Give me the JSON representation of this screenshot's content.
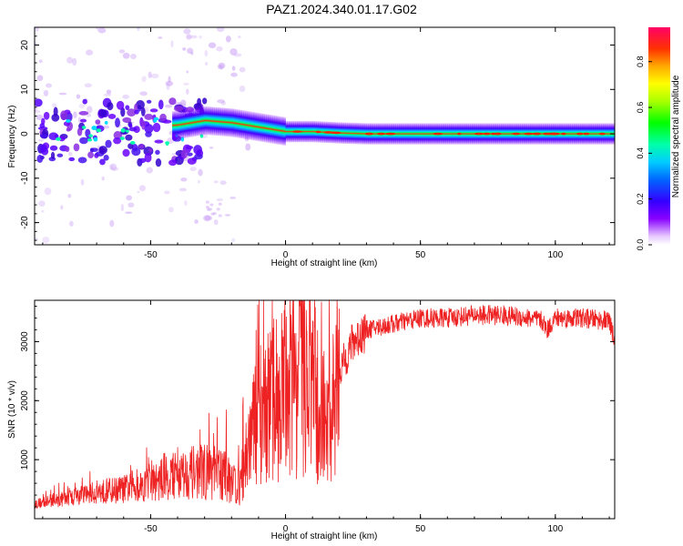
{
  "page": {
    "title": "PAZ1.2024.340.01.17.G02"
  },
  "chart_data": [
    {
      "type": "heatmap",
      "xlabel": "Height of straight line (km)",
      "ylabel": "Frequency (Hz)",
      "xlim": [
        -93,
        122
      ],
      "ylim": [
        -25,
        24
      ],
      "xticks": [
        "-50",
        "0",
        "50",
        "100"
      ],
      "yticks": [
        "-20",
        "-10",
        "0",
        "10",
        "20"
      ],
      "colorbar": {
        "label": "Normalized spectral amplitude",
        "range": [
          0,
          0.95
        ],
        "ticks": [
          "0.0",
          "0.2",
          "0.4",
          "0.6",
          "0.8"
        ]
      },
      "ridge": {
        "description_points_x": [
          -93,
          -60,
          -40,
          -30,
          -20,
          -10,
          0,
          10,
          20,
          30,
          50,
          122
        ],
        "center_freq_hz": [
          0.5,
          1.0,
          2.0,
          3.0,
          2.5,
          1.5,
          0.5,
          0.5,
          0.2,
          0.0,
          0.0,
          0.0
        ]
      }
    },
    {
      "type": "line",
      "xlabel": "Height of straight line (km)",
      "ylabel": "SNR (10 * v/v)",
      "xlim": [
        -93,
        122
      ],
      "ylim": [
        0,
        3700
      ],
      "xticks": [
        "-50",
        "0",
        "50",
        "100"
      ],
      "yticks": [
        "1000",
        "2000",
        "3000"
      ],
      "color": "#ee2222",
      "series": [
        {
          "x": [
            -93,
            -80,
            -70,
            -60,
            -50,
            -40,
            -30,
            -20,
            -17,
            -15,
            -10,
            -5,
            0,
            5,
            10,
            12,
            15,
            17,
            20,
            25,
            30,
            40,
            50,
            60,
            70,
            80,
            90,
            95,
            97,
            100,
            110,
            120,
            122
          ],
          "values": [
            250,
            350,
            450,
            500,
            600,
            750,
            800,
            700,
            500,
            1000,
            1800,
            2000,
            2200,
            2500,
            2400,
            1800,
            1300,
            1700,
            2500,
            3000,
            3200,
            3300,
            3400,
            3400,
            3450,
            3450,
            3400,
            3350,
            3200,
            3400,
            3400,
            3350,
            3000
          ]
        }
      ]
    }
  ]
}
